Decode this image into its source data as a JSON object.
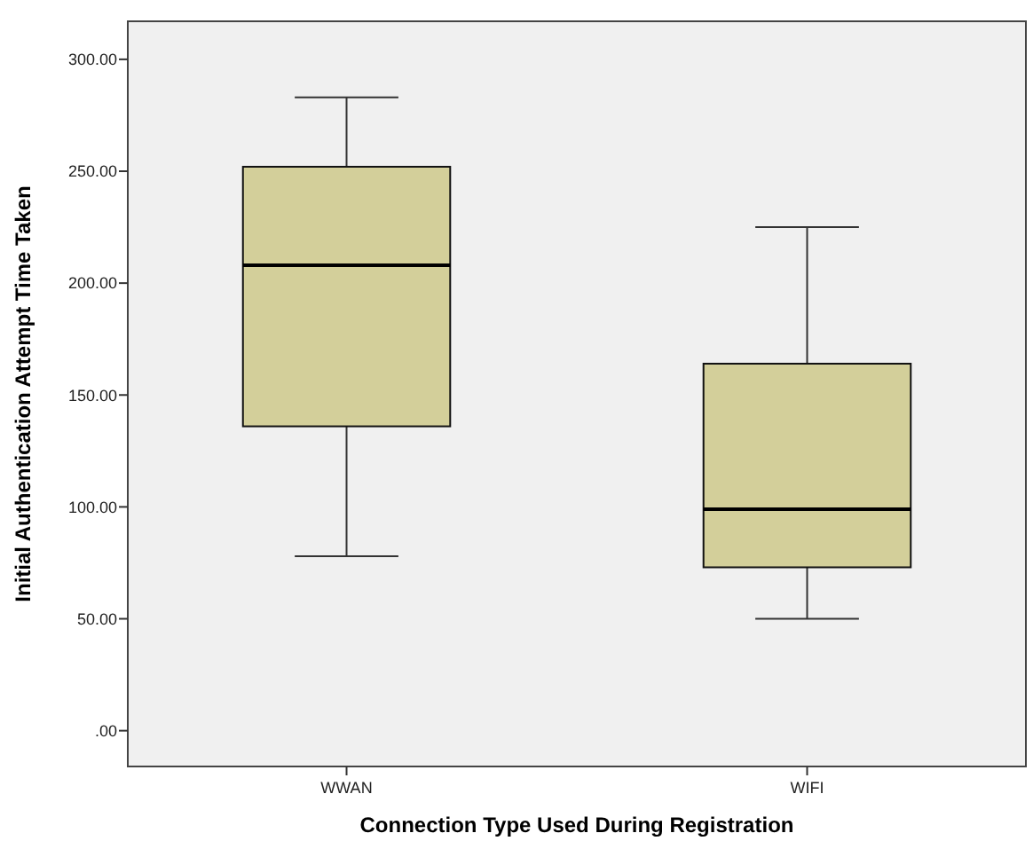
{
  "chart_data": {
    "type": "box",
    "xlabel": "Connection Type Used During Registration",
    "ylabel": "Initial Authentication Attempt Time Taken",
    "categories": [
      "WWAN",
      "WIFI"
    ],
    "color": "#d3cf9a",
    "boxes": [
      {
        "low": 78,
        "q1": 136,
        "median": 208,
        "q3": 252,
        "high": 283
      },
      {
        "low": 50,
        "q1": 73,
        "median": 99,
        "q3": 164,
        "high": 225
      }
    ],
    "ylim": [
      -16,
      317
    ],
    "yticks": [
      {
        "value": 0,
        "label": ".00"
      },
      {
        "value": 50,
        "label": "50.00"
      },
      {
        "value": 100,
        "label": "100.00"
      },
      {
        "value": 150,
        "label": "150.00"
      },
      {
        "value": 200,
        "label": "200.00"
      },
      {
        "value": 250,
        "label": "250.00"
      },
      {
        "value": 300,
        "label": "300.00"
      }
    ],
    "grid": false
  }
}
